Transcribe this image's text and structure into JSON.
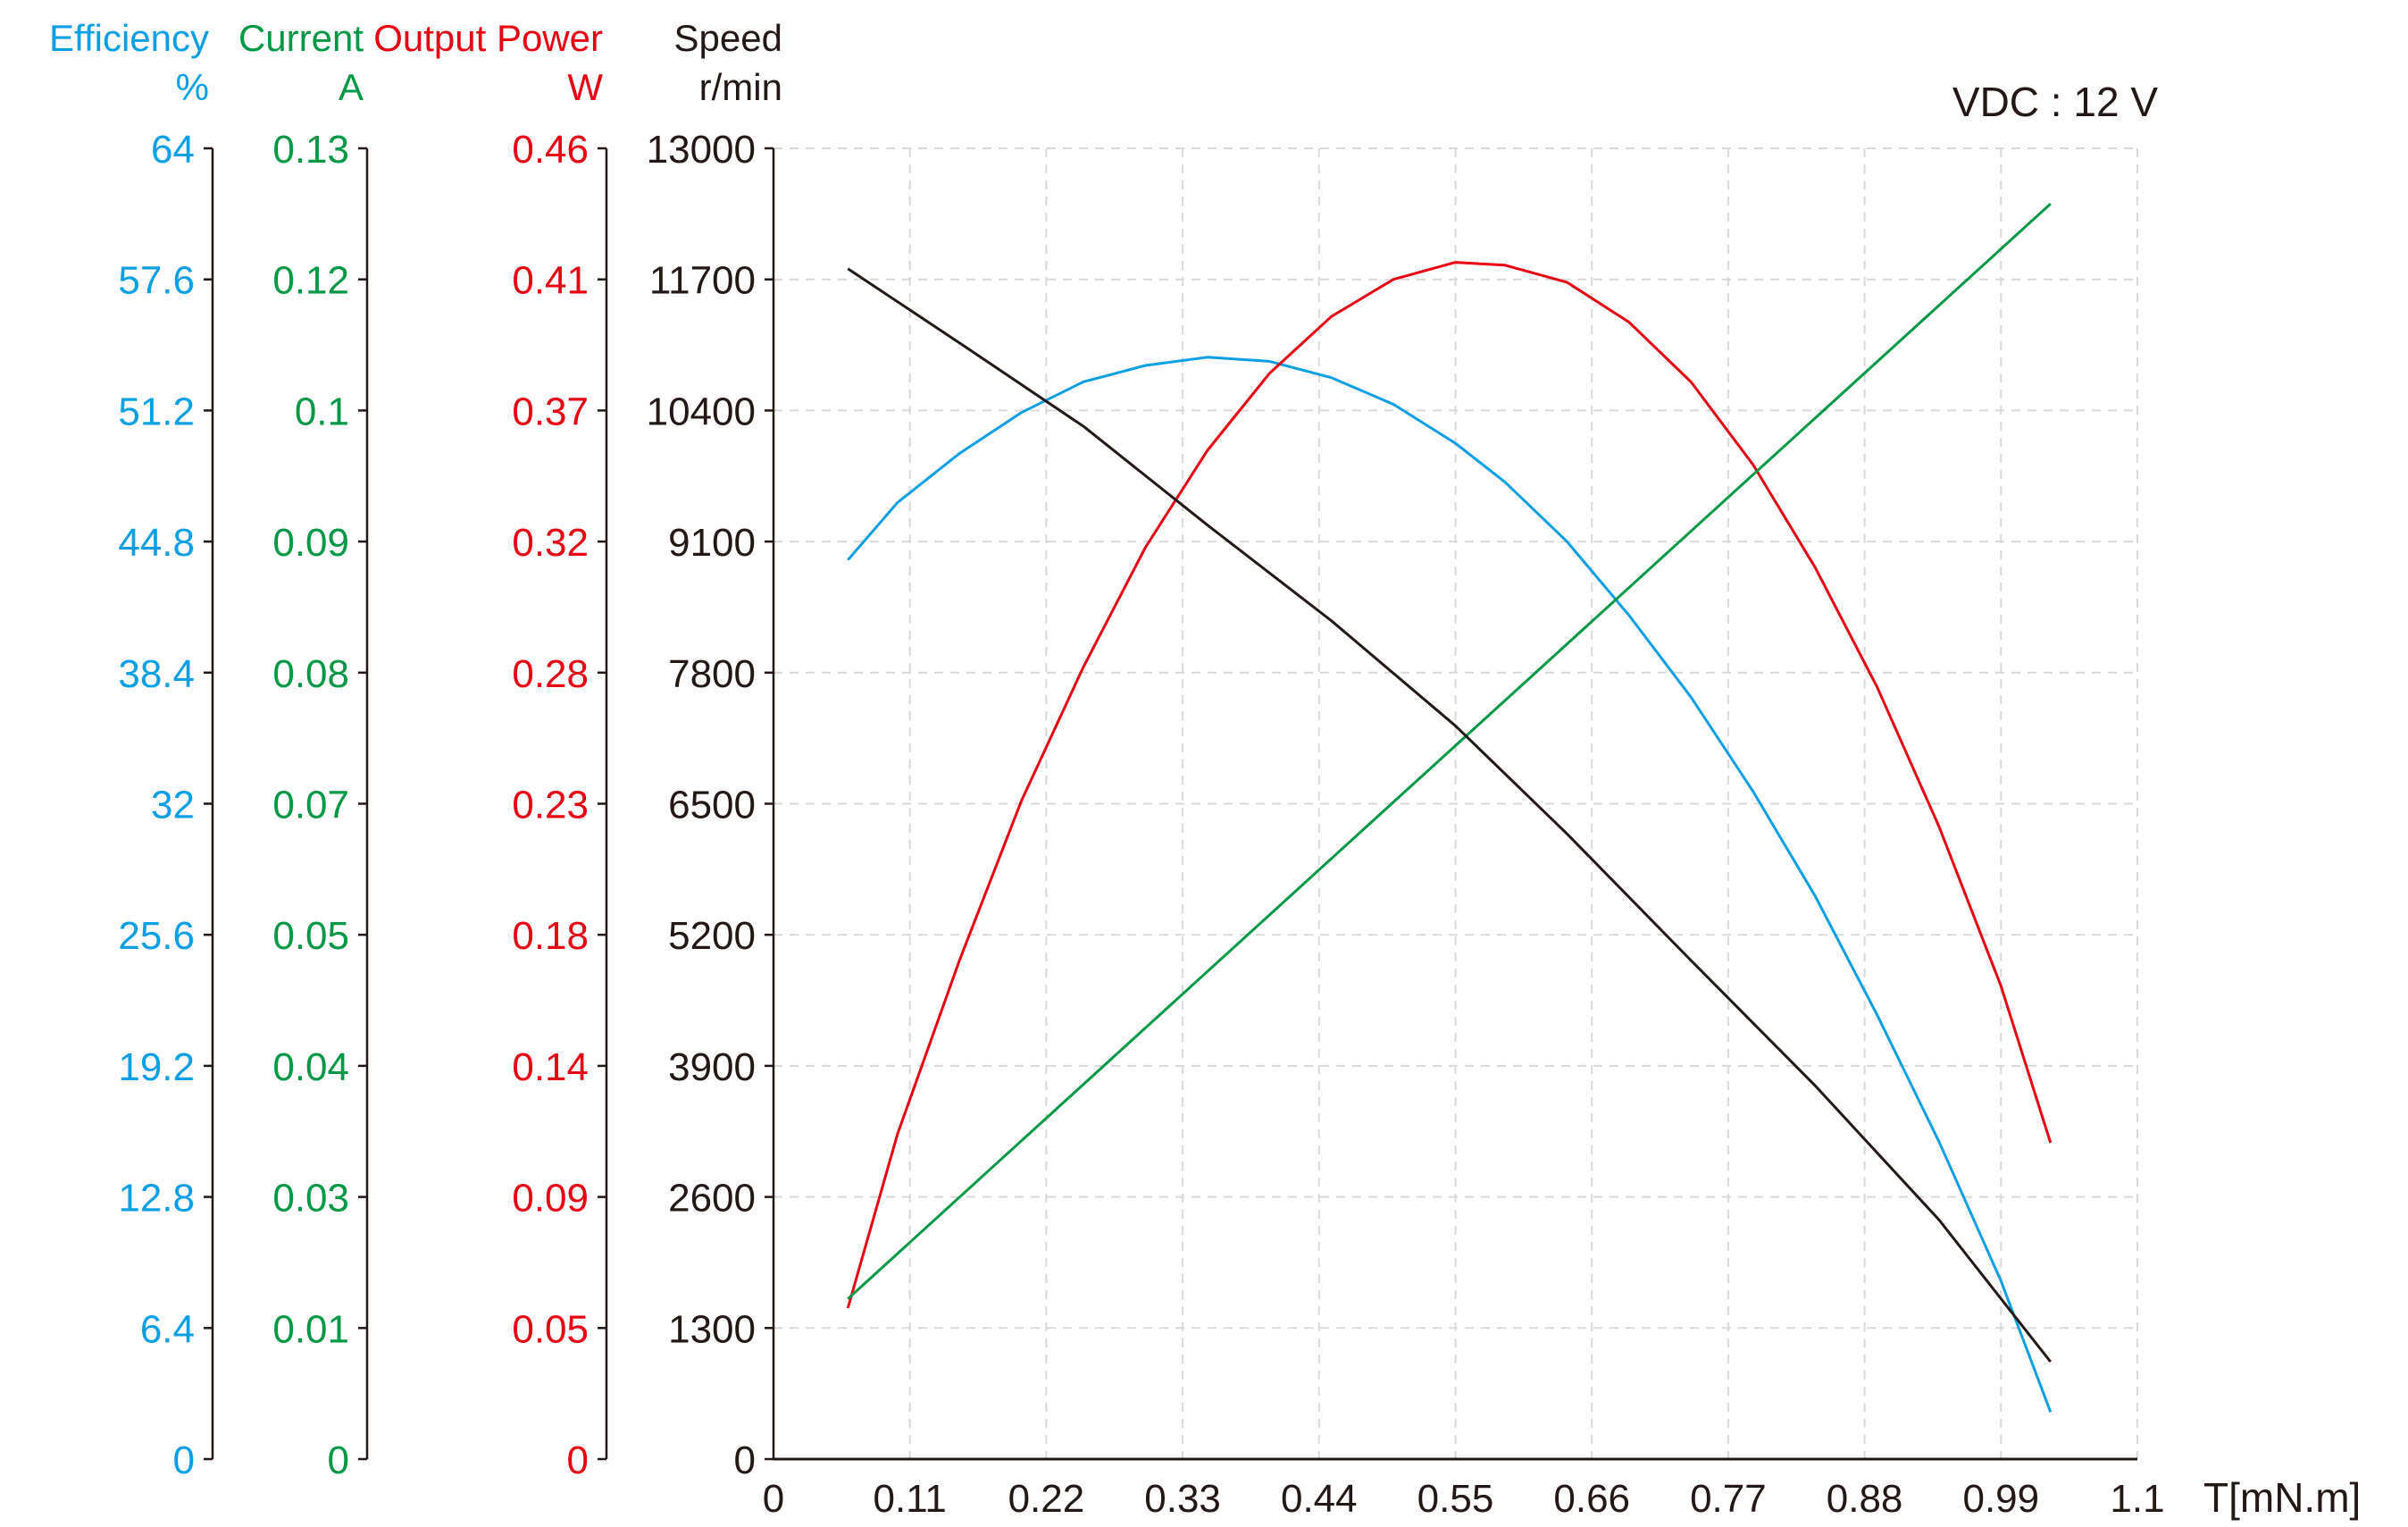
{
  "chart_data": {
    "type": "line",
    "annotation": "VDC : 12 V",
    "xlabel": "T[mN.m]",
    "xlim": [
      0,
      1.1
    ],
    "xticks": [
      "0",
      "0.11",
      "0.22",
      "0.33",
      "0.44",
      "0.55",
      "0.66",
      "0.77",
      "0.88",
      "0.99",
      "1.1"
    ],
    "grid": true,
    "axes": [
      {
        "key": "efficiency",
        "title": "Efficiency",
        "unit": "%",
        "color": "#0a9fe3",
        "ylim": [
          0,
          64
        ],
        "ticks": [
          "0",
          "6.4",
          "12.8",
          "19.2",
          "25.6",
          "32",
          "38.4",
          "44.8",
          "51.2",
          "57.6",
          "64"
        ]
      },
      {
        "key": "current",
        "title": "Current",
        "unit": "A",
        "color": "#009844",
        "ylim": [
          0,
          0.13
        ],
        "ticks": [
          "0",
          "0.01",
          "0.03",
          "0.04",
          "0.05",
          "0.07",
          "0.08",
          "0.09",
          "0.1",
          "0.12",
          "0.13"
        ]
      },
      {
        "key": "power",
        "title": "Output Power",
        "unit": "W",
        "color": "#e60012",
        "ylim": [
          0,
          0.46
        ],
        "ticks": [
          "0",
          "0.05",
          "0.09",
          "0.14",
          "0.18",
          "0.23",
          "0.28",
          "0.32",
          "0.37",
          "0.41",
          "0.46"
        ]
      },
      {
        "key": "speed",
        "title": "Speed",
        "unit": "r/min",
        "color": "#231815",
        "ylim": [
          0,
          13000
        ],
        "ticks": [
          "0",
          "1300",
          "2600",
          "3900",
          "5200",
          "6500",
          "7800",
          "9100",
          "10400",
          "11700",
          "13000"
        ]
      }
    ],
    "series": [
      {
        "axis": "efficiency",
        "color": "#0a9fe3",
        "x": [
          0.06,
          0.1,
          0.15,
          0.2,
          0.25,
          0.3,
          0.35,
          0.4,
          0.45,
          0.5,
          0.55,
          0.59,
          0.64,
          0.69,
          0.74,
          0.79,
          0.84,
          0.89,
          0.94,
          0.99,
          1.03
        ],
        "values": [
          43.9,
          46.7,
          49.1,
          51.1,
          52.6,
          53.4,
          53.8,
          53.6,
          52.8,
          51.5,
          49.6,
          47.7,
          44.8,
          41.2,
          37.2,
          32.6,
          27.5,
          21.7,
          15.5,
          8.7,
          2.3
        ]
      },
      {
        "axis": "power",
        "color": "#e60012",
        "x": [
          0.06,
          0.1,
          0.15,
          0.2,
          0.25,
          0.3,
          0.35,
          0.4,
          0.45,
          0.5,
          0.55,
          0.59,
          0.64,
          0.69,
          0.74,
          0.79,
          0.84,
          0.89,
          0.94,
          0.99,
          1.03
        ],
        "values": [
          0.053,
          0.114,
          0.175,
          0.231,
          0.278,
          0.32,
          0.354,
          0.381,
          0.401,
          0.414,
          0.42,
          0.419,
          0.413,
          0.399,
          0.378,
          0.349,
          0.313,
          0.271,
          0.222,
          0.166,
          0.111
        ]
      },
      {
        "axis": "current",
        "color": "#009844",
        "x": [
          0.06,
          1.03
        ],
        "values": [
          0.0159,
          0.1245
        ]
      },
      {
        "axis": "speed",
        "color": "#231815",
        "x": [
          0.06,
          0.15,
          0.25,
          0.35,
          0.45,
          0.55,
          0.64,
          0.74,
          0.84,
          0.94,
          1.03
        ],
        "values": [
          11806,
          11070,
          10243,
          9263,
          8314,
          7273,
          6201,
          4945,
          3705,
          2373,
          965
        ]
      }
    ]
  }
}
